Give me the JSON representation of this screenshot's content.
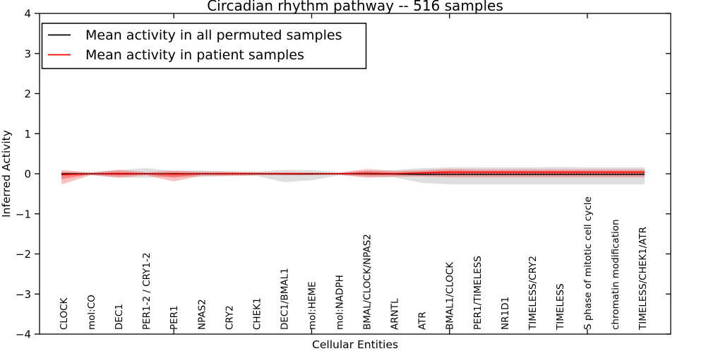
{
  "chart": {
    "title": "Circadian rhythm pathway -- 516 samples",
    "xlabel": "Cellular Entities",
    "ylabel": "Inferred Activity",
    "legend": {
      "items": [
        {
          "label": "Mean activity in all permuted samples",
          "color": "#000000"
        },
        {
          "label": "Mean activity in patient samples",
          "color": "#ff0000"
        }
      ]
    }
  },
  "colors": {
    "permuted_band": "rgba(0,0,0,0.13)",
    "patient_band_outer": "rgba(255,0,0,0.25)",
    "patient_band_inner": "rgba(255,0,0,0.32)",
    "permuted_line": "#000000",
    "patient_line": "#ff0000",
    "zero_line": "#000000"
  },
  "chart_data": {
    "type": "line",
    "title": "Circadian rhythm pathway -- 516 samples",
    "xlabel": "Cellular Entities",
    "ylabel": "Inferred Activity",
    "ylim": [
      -4,
      4
    ],
    "grid": false,
    "legend_position": "upper left",
    "categories": [
      "CLOCK",
      "mol:CO",
      "DEC1",
      "PER1-2 / CRY1-2",
      "PER1",
      "NPAS2",
      "CRY2",
      "CHEK1",
      "DEC1/BMAL1",
      "mol:HEME",
      "mol:NADPH",
      "BMAL/CLOCK/NPAS2",
      "ARNTL",
      "ATR",
      "BMAL1/CLOCK",
      "PER1/TIMELESS",
      "NR1D1",
      "TIMELESS/CRY2",
      "TIMELESS",
      "S phase of mitotic cell cycle",
      "chromatin modification",
      "TIMELESS/CHEK1/ATR"
    ],
    "ytick_values": [
      -4,
      -3,
      -2,
      -1,
      0,
      1,
      2,
      3,
      4
    ],
    "ytick_labels": [
      "−4",
      "−3",
      "−2",
      "−1",
      "0",
      "1",
      "2",
      "3",
      "4"
    ],
    "xtick_category_indices": [
      4,
      9,
      14,
      19
    ],
    "series": [
      {
        "name": "permuted_mean",
        "values": [
          0.0,
          0.0,
          0.0,
          0.0,
          0.0,
          0.0,
          0.0,
          0.0,
          -0.01,
          -0.01,
          0.0,
          0.0,
          -0.01,
          -0.02,
          -0.02,
          -0.02,
          -0.02,
          -0.02,
          -0.02,
          -0.02,
          -0.02,
          -0.02
        ]
      },
      {
        "name": "permuted_upper",
        "values": [
          0.05,
          0.04,
          0.09,
          0.14,
          0.07,
          0.08,
          0.06,
          0.05,
          0.1,
          0.09,
          0.04,
          0.07,
          0.09,
          0.14,
          0.16,
          0.16,
          0.16,
          0.16,
          0.17,
          0.16,
          0.16,
          0.16
        ]
      },
      {
        "name": "permuted_lower",
        "values": [
          -0.05,
          -0.04,
          -0.09,
          -0.1,
          -0.07,
          -0.08,
          -0.06,
          -0.05,
          -0.21,
          -0.16,
          -0.04,
          -0.07,
          -0.09,
          -0.23,
          -0.26,
          -0.26,
          -0.26,
          -0.26,
          -0.26,
          -0.26,
          -0.26,
          -0.26
        ]
      },
      {
        "name": "patient_mean",
        "values": [
          -0.02,
          0.0,
          0.0,
          0.0,
          -0.01,
          0.0,
          0.0,
          0.0,
          0.0,
          0.0,
          0.0,
          0.01,
          0.0,
          0.02,
          0.04,
          0.04,
          0.04,
          0.04,
          0.04,
          0.04,
          0.04,
          0.04
        ]
      },
      {
        "name": "patient_upper",
        "values": [
          0.09,
          0.03,
          0.1,
          0.04,
          0.08,
          0.05,
          0.05,
          0.04,
          0.04,
          0.035,
          0.025,
          0.12,
          0.07,
          0.09,
          0.12,
          0.11,
          0.11,
          0.11,
          0.11,
          0.11,
          0.11,
          0.11
        ]
      },
      {
        "name": "patient_lower",
        "values": [
          -0.25,
          -0.03,
          -0.1,
          -0.04,
          -0.19,
          -0.05,
          -0.05,
          -0.04,
          -0.04,
          -0.035,
          -0.025,
          -0.1,
          -0.07,
          -0.07,
          -0.09,
          -0.09,
          -0.09,
          -0.09,
          -0.09,
          -0.09,
          -0.09,
          -0.09
        ]
      }
    ]
  }
}
